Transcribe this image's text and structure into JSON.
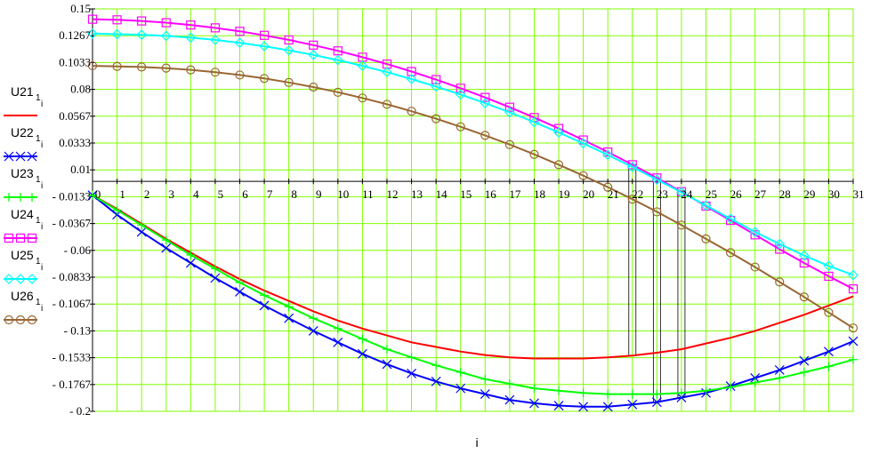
{
  "chart_data": {
    "type": "line",
    "xlabel": "i",
    "x": [
      0,
      1,
      2,
      3,
      4,
      5,
      6,
      7,
      8,
      9,
      10,
      11,
      12,
      13,
      14,
      15,
      16,
      17,
      18,
      19,
      20,
      21,
      22,
      23,
      24,
      25,
      26,
      27,
      28,
      29,
      30,
      31
    ],
    "xlim": [
      0,
      31
    ],
    "ylim": [
      -0.2,
      0.15
    ],
    "yticks": [
      {
        "value": 0.15,
        "label": "0.15"
      },
      {
        "value": 0.12667,
        "label": "0.1267"
      },
      {
        "value": 0.10333,
        "label": "0.1033"
      },
      {
        "value": 0.08,
        "label": "0.08"
      },
      {
        "value": 0.05667,
        "label": "0.0567"
      },
      {
        "value": 0.03333,
        "label": "0.0333"
      },
      {
        "value": 0.01,
        "label": "0.01"
      },
      {
        "value": -0.01333,
        "label": "- 0.0133"
      },
      {
        "value": -0.03667,
        "label": "- 0.0367"
      },
      {
        "value": -0.06,
        "label": "- 0.06"
      },
      {
        "value": -0.08333,
        "label": "- 0.0833"
      },
      {
        "value": -0.10667,
        "label": "- 0.1067"
      },
      {
        "value": -0.13,
        "label": "- 0.13"
      },
      {
        "value": -0.15333,
        "label": "- 0.1533"
      },
      {
        "value": -0.17667,
        "label": "- 0.1767"
      },
      {
        "value": -0.2,
        "label": "- 0.2"
      }
    ],
    "grid": true,
    "series": [
      {
        "name": "U21",
        "sub": "1",
        "subsub": "i",
        "color": "#ff0000",
        "marker": "none",
        "values": [
          -0.012,
          -0.024,
          -0.037,
          -0.05,
          -0.062,
          -0.074,
          -0.085,
          -0.095,
          -0.104,
          -0.113,
          -0.121,
          -0.128,
          -0.134,
          -0.14,
          -0.144,
          -0.148,
          -0.151,
          -0.153,
          -0.154,
          -0.154,
          -0.154,
          -0.153,
          -0.1515,
          -0.149,
          -0.146,
          -0.141,
          -0.136,
          -0.13,
          -0.123,
          -0.116,
          -0.108,
          -0.1
        ]
      },
      {
        "name": "U22",
        "sub": "1",
        "subsub": "i",
        "color": "#0000ff",
        "marker": "x",
        "values": [
          -0.012,
          -0.029,
          -0.044,
          -0.058,
          -0.071,
          -0.084,
          -0.096,
          -0.108,
          -0.119,
          -0.13,
          -0.14,
          -0.15,
          -0.159,
          -0.167,
          -0.174,
          -0.18,
          -0.185,
          -0.19,
          -0.193,
          -0.195,
          -0.196,
          -0.196,
          -0.194,
          -0.192,
          -0.188,
          -0.184,
          -0.178,
          -0.171,
          -0.164,
          -0.156,
          -0.148,
          -0.139
        ]
      },
      {
        "name": "U23",
        "sub": "1",
        "subsub": "i",
        "color": "#00ff00",
        "marker": "+",
        "values": [
          -0.012,
          -0.025,
          -0.038,
          -0.051,
          -0.064,
          -0.076,
          -0.088,
          -0.099,
          -0.109,
          -0.119,
          -0.128,
          -0.137,
          -0.146,
          -0.153,
          -0.16,
          -0.166,
          -0.172,
          -0.176,
          -0.18,
          -0.182,
          -0.184,
          -0.185,
          -0.185,
          -0.185,
          -0.184,
          -0.182,
          -0.179,
          -0.175,
          -0.171,
          -0.166,
          -0.161,
          -0.155
        ]
      },
      {
        "name": "U24",
        "sub": "1",
        "subsub": "i",
        "color": "#ff00ff",
        "marker": "square",
        "values": [
          0.141,
          0.1405,
          0.1395,
          0.138,
          0.136,
          0.1335,
          0.1305,
          0.127,
          0.123,
          0.1185,
          0.1135,
          0.108,
          0.102,
          0.0955,
          0.0885,
          0.081,
          0.073,
          0.0645,
          0.0555,
          0.046,
          0.036,
          0.0255,
          0.0145,
          0.003,
          -0.009,
          -0.0215,
          -0.034,
          -0.0465,
          -0.059,
          -0.071,
          -0.0825,
          -0.0935
        ]
      },
      {
        "name": "U25",
        "sub": "1",
        "subsub": "i",
        "color": "#00ffff",
        "marker": "diamond",
        "values": [
          0.1285,
          0.128,
          0.1275,
          0.1265,
          0.125,
          0.123,
          0.1205,
          0.1175,
          0.114,
          0.11,
          0.1055,
          0.1005,
          0.095,
          0.089,
          0.0825,
          0.0755,
          0.068,
          0.06,
          0.0515,
          0.0425,
          0.033,
          0.023,
          0.0125,
          0.0015,
          -0.0095,
          -0.021,
          -0.0325,
          -0.044,
          -0.0545,
          -0.0645,
          -0.0735,
          -0.0815
        ]
      },
      {
        "name": "U26",
        "sub": "1",
        "subsub": "i",
        "color": "#996633",
        "marker": "circle",
        "values": [
          0.1005,
          0.1,
          0.0995,
          0.0985,
          0.097,
          0.095,
          0.0925,
          0.0895,
          0.086,
          0.082,
          0.0775,
          0.0725,
          0.067,
          0.061,
          0.0545,
          0.0475,
          0.04,
          0.032,
          0.0235,
          0.0145,
          0.005,
          -0.005,
          -0.0155,
          -0.0265,
          -0.038,
          -0.05,
          -0.062,
          -0.0745,
          -0.0875,
          -0.1005,
          -0.114,
          -0.1275
        ]
      }
    ]
  },
  "markers_text": {
    "x_axis_label": "i"
  }
}
